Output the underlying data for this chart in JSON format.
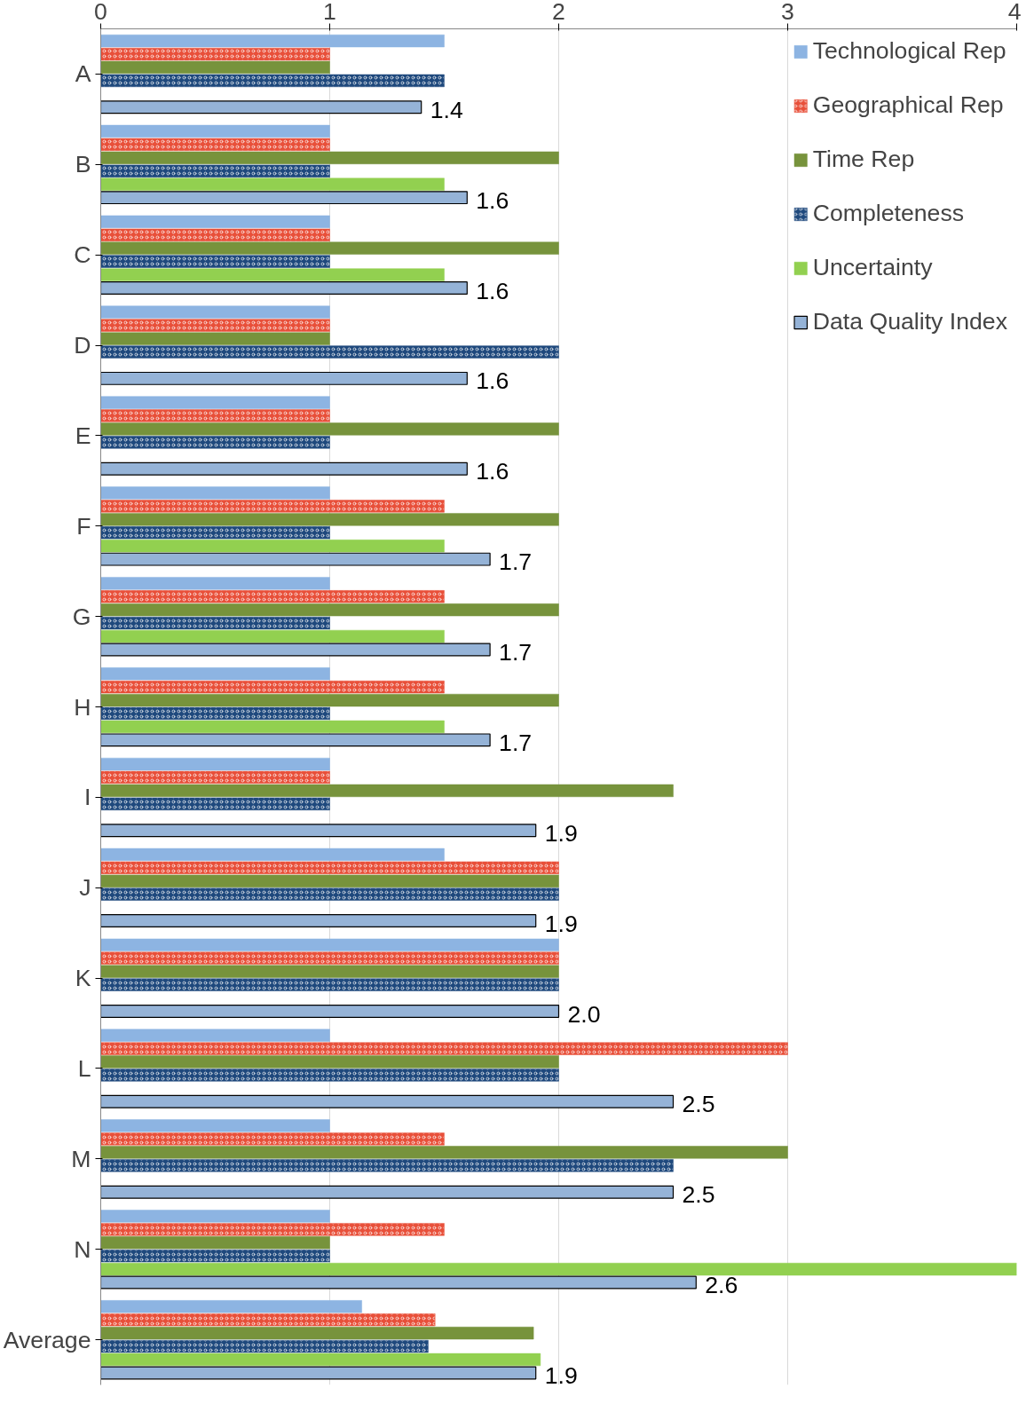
{
  "chart_data": {
    "type": "bar",
    "orientation": "horizontal",
    "categories": [
      "A",
      "B",
      "C",
      "D",
      "E",
      "F",
      "G",
      "H",
      "I",
      "J",
      "K",
      "L",
      "M",
      "N",
      "Average"
    ],
    "xlim": [
      0,
      4
    ],
    "xticks": [
      0,
      1,
      2,
      3,
      4
    ],
    "grid": "x",
    "legend": "top right",
    "series": [
      {
        "name": "Technological Rep",
        "color": "#8db4e2",
        "values": [
          1.5,
          1,
          1,
          1,
          1,
          1,
          1,
          1,
          1,
          1.5,
          2,
          1,
          1,
          1,
          1.14
        ]
      },
      {
        "name": "Geographical Rep",
        "color": "#e8503a",
        "values": [
          1,
          1,
          1,
          1,
          1,
          1.5,
          1.5,
          1.5,
          1,
          2,
          2,
          3,
          1.5,
          1.5,
          1.46
        ]
      },
      {
        "name": "Time Rep",
        "color": "#77933c",
        "values": [
          1,
          2,
          2,
          1,
          2,
          2,
          2,
          2,
          2.5,
          2,
          2,
          2,
          3,
          1,
          1.89
        ]
      },
      {
        "name": "Completeness",
        "color": "#1f497d",
        "values": [
          1.5,
          1,
          1,
          2,
          1,
          1,
          1,
          1,
          1,
          2,
          2,
          2,
          2.5,
          1,
          1.43
        ]
      },
      {
        "name": "Uncertainty",
        "color": "#92d050",
        "values": [
          null,
          1.5,
          1.5,
          null,
          null,
          1.5,
          1.5,
          1.5,
          null,
          null,
          null,
          null,
          null,
          4,
          1.92
        ]
      },
      {
        "name": "Data Quality Index",
        "color": "#95b3d7",
        "values": [
          1.4,
          1.6,
          1.6,
          1.6,
          1.6,
          1.7,
          1.7,
          1.7,
          1.9,
          1.9,
          2.0,
          2.5,
          2.5,
          2.6,
          1.9
        ],
        "value_labels": [
          "1.4",
          "1.6",
          "1.6",
          "1.6",
          "1.6",
          "1.7",
          "1.7",
          "1.7",
          "1.9",
          "1.9",
          "2.0",
          "2.5",
          "2.5",
          "2.6",
          "1.9"
        ]
      }
    ]
  }
}
